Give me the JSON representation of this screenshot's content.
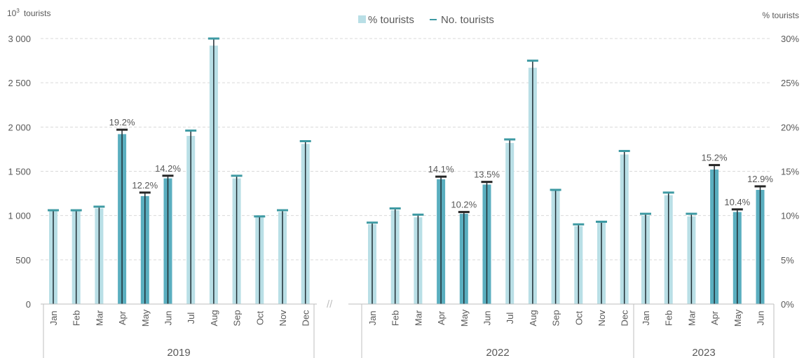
{
  "chart_data": {
    "type": "bar",
    "left_axis_unit": {
      "base": "10",
      "exp": "3",
      "text": "tourists"
    },
    "right_axis_unit": "% tourists",
    "legend": {
      "bar": "% tourists",
      "line": "No. tourists"
    },
    "y_left": {
      "lim": [
        0,
        3000
      ],
      "ticks": [
        "0",
        "500",
        "1 000",
        "1 500",
        "2 000",
        "2 500",
        "3 000"
      ]
    },
    "y_right": {
      "lim": [
        0,
        30
      ],
      "ticks": [
        "0%",
        "5%",
        "10%",
        "15%",
        "20%",
        "25%",
        "30%"
      ]
    },
    "break_mark": "//",
    "colors": {
      "light_bar": "#b9dfe6",
      "dark_bar": "#5aaebf",
      "line_cap": "#3e9aa3",
      "highlight_cap": "#262626",
      "grid": "#d9d9d9"
    },
    "groups": [
      {
        "year": "2019",
        "months": [
          "Jan",
          "Feb",
          "Mar",
          "Apr",
          "May",
          "Jun",
          "Jul",
          "Aug",
          "Sep",
          "Oct",
          "Nov",
          "Dec"
        ],
        "percent": [
          10.5,
          10.5,
          10.8,
          19.2,
          12.2,
          14.2,
          19.0,
          29.2,
          14.2,
          9.8,
          10.4,
          18.1
        ],
        "tourists": [
          1060,
          1060,
          1100,
          1970,
          1260,
          1450,
          1960,
          3000,
          1450,
          990,
          1060,
          1840
        ],
        "highlight": [
          false,
          false,
          false,
          true,
          true,
          true,
          false,
          false,
          false,
          false,
          false,
          false
        ],
        "labels": [
          "",
          "",
          "",
          "19.2%",
          "12.2%",
          "14.2%",
          "",
          "",
          "",
          "",
          "",
          ""
        ]
      },
      {
        "year": "2022",
        "months": [
          "Jan",
          "Feb",
          "Mar",
          "Apr",
          "May",
          "Jun",
          "Jul",
          "Aug",
          "Sep",
          "Oct",
          "Nov",
          "Dec"
        ],
        "percent": [
          9.0,
          10.6,
          9.8,
          14.1,
          10.2,
          13.5,
          18.2,
          26.7,
          12.8,
          8.8,
          9.2,
          16.9
        ],
        "tourists": [
          920,
          1080,
          1010,
          1440,
          1040,
          1380,
          1860,
          2750,
          1290,
          900,
          930,
          1730
        ],
        "highlight": [
          false,
          false,
          false,
          true,
          true,
          true,
          false,
          false,
          false,
          false,
          false,
          false
        ],
        "labels": [
          "",
          "",
          "",
          "14.1%",
          "10.2%",
          "13.5%",
          "",
          "",
          "",
          "",
          "",
          ""
        ]
      },
      {
        "year": "2023",
        "months": [
          "Jan",
          "Feb",
          "Mar",
          "Apr",
          "May",
          "Jun"
        ],
        "percent": [
          10.0,
          12.3,
          9.9,
          15.2,
          10.4,
          12.9
        ],
        "tourists": [
          1020,
          1260,
          1020,
          1570,
          1070,
          1330
        ],
        "highlight": [
          false,
          false,
          false,
          true,
          true,
          true
        ],
        "labels": [
          "",
          "",
          "",
          "15.2%",
          "10.4%",
          "12.9%"
        ]
      }
    ]
  }
}
